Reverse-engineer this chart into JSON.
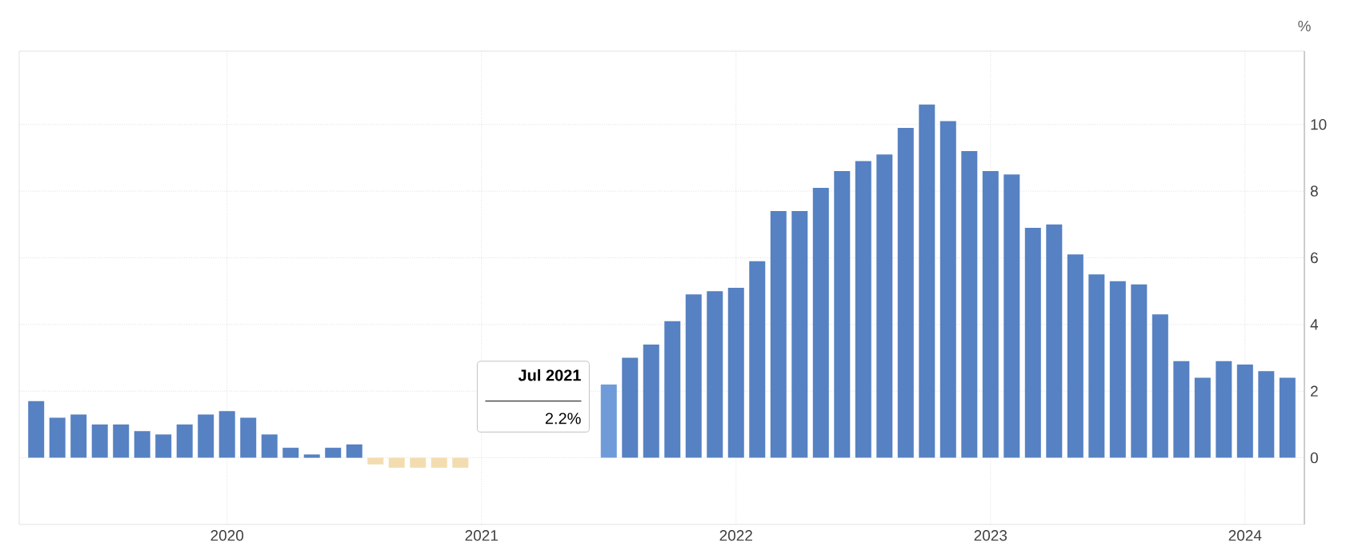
{
  "chart_data": {
    "type": "bar",
    "ylabel": "%",
    "categories": [
      null,
      null,
      null,
      null,
      null,
      null,
      null,
      null,
      null,
      "2020",
      null,
      null,
      null,
      null,
      null,
      null,
      null,
      null,
      null,
      null,
      null,
      "2021",
      null,
      null,
      null,
      null,
      null,
      null,
      null,
      null,
      null,
      null,
      null,
      "2022",
      null,
      null,
      null,
      null,
      null,
      null,
      null,
      null,
      null,
      null,
      null,
      "2023",
      null,
      null,
      null,
      null,
      null,
      null,
      null,
      null,
      null,
      null,
      null,
      "2024",
      null,
      null
    ],
    "values": [
      1.7,
      1.2,
      1.3,
      1.0,
      1.0,
      0.8,
      0.7,
      1.0,
      1.3,
      1.4,
      1.2,
      0.7,
      0.3,
      0.1,
      0.3,
      0.4,
      -0.2,
      -0.3,
      -0.3,
      -0.3,
      -0.3,
      null,
      null,
      null,
      null,
      null,
      null,
      2.2,
      3.0,
      3.4,
      4.1,
      4.9,
      5.0,
      5.1,
      5.9,
      7.4,
      7.4,
      8.1,
      8.6,
      8.9,
      9.1,
      9.9,
      10.6,
      10.1,
      9.2,
      8.6,
      8.5,
      6.9,
      7.0,
      6.1,
      5.5,
      5.3,
      5.2,
      4.3,
      2.9,
      2.4,
      2.9,
      2.8,
      2.6,
      2.4
    ],
    "colors": [
      "#5681c2",
      "#5681c2",
      "#5681c2",
      "#5681c2",
      "#5681c2",
      "#5681c2",
      "#5681c2",
      "#5681c2",
      "#5681c2",
      "#5681c2",
      "#5681c2",
      "#5681c2",
      "#5681c2",
      "#5681c2",
      "#5681c2",
      "#5681c2",
      "#f3ddb0",
      "#f3ddb0",
      "#f3ddb0",
      "#f3ddb0",
      "#f3ddb0",
      "#5681c2",
      "#5681c2",
      "#5681c2",
      "#5681c2",
      "#5681c2",
      "#5681c2",
      "#6f9bd9",
      "#5681c2",
      "#5681c2",
      "#5681c2",
      "#5681c2",
      "#5681c2",
      "#5681c2",
      "#5681c2",
      "#5681c2",
      "#5681c2",
      "#5681c2",
      "#5681c2",
      "#5681c2",
      "#5681c2",
      "#5681c2",
      "#5681c2",
      "#5681c2",
      "#5681c2",
      "#5681c2",
      "#5681c2",
      "#5681c2",
      "#5681c2",
      "#5681c2",
      "#5681c2",
      "#5681c2",
      "#5681c2",
      "#5681c2",
      "#5681c2",
      "#5681c2",
      "#5681c2",
      "#5681c2",
      "#5681c2",
      "#5681c2"
    ],
    "ylim": [
      -2,
      12.2
    ],
    "yticks": [
      0,
      2,
      4,
      6,
      8,
      10
    ],
    "grid": true,
    "annotations": [
      "Jul 2021",
      "2.2%"
    ]
  }
}
